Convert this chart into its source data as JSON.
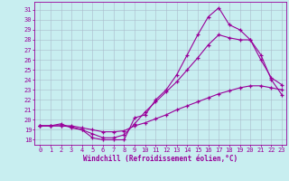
{
  "bg_color": "#c8eef0",
  "line_color": "#990099",
  "grid_color": "#aabbcc",
  "xlabel": "Windchill (Refroidissement éolien,°C)",
  "ylim": [
    17.5,
    31.8
  ],
  "xlim": [
    -0.5,
    23.4
  ],
  "yticks": [
    18,
    19,
    20,
    21,
    22,
    23,
    24,
    25,
    26,
    27,
    28,
    29,
    30,
    31
  ],
  "xticks": [
    0,
    1,
    2,
    3,
    4,
    5,
    6,
    7,
    8,
    9,
    10,
    11,
    12,
    13,
    14,
    15,
    16,
    17,
    18,
    19,
    20,
    21,
    22,
    23
  ],
  "line1_x": [
    0,
    1,
    2,
    3,
    4,
    5,
    6,
    7,
    8,
    9,
    10,
    11,
    12,
    13,
    14,
    15,
    16,
    17,
    18,
    19,
    20,
    21,
    22,
    23
  ],
  "line1_y": [
    19.4,
    19.4,
    19.6,
    19.2,
    19.0,
    18.2,
    18.0,
    18.0,
    18.0,
    20.2,
    20.5,
    22.0,
    23.0,
    24.5,
    26.5,
    28.5,
    30.3,
    31.2,
    29.5,
    29.0,
    28.0,
    26.0,
    24.2,
    23.5
  ],
  "line2_x": [
    0,
    1,
    2,
    3,
    4,
    5,
    6,
    7,
    8,
    9,
    10,
    11,
    12,
    13,
    14,
    15,
    16,
    17,
    18,
    19,
    20,
    21,
    22,
    23
  ],
  "line2_y": [
    19.4,
    19.4,
    19.4,
    19.3,
    19.0,
    18.6,
    18.2,
    18.2,
    18.5,
    19.6,
    20.8,
    21.8,
    22.8,
    23.8,
    25.0,
    26.2,
    27.5,
    28.5,
    28.2,
    28.0,
    28.0,
    26.5,
    24.0,
    22.5
  ],
  "line3_x": [
    0,
    1,
    2,
    3,
    4,
    5,
    6,
    7,
    8,
    9,
    10,
    11,
    12,
    13,
    14,
    15,
    16,
    17,
    18,
    19,
    20,
    21,
    22,
    23
  ],
  "line3_y": [
    19.4,
    19.4,
    19.4,
    19.4,
    19.2,
    19.0,
    18.8,
    18.8,
    18.9,
    19.4,
    19.7,
    20.1,
    20.5,
    21.0,
    21.4,
    21.8,
    22.2,
    22.6,
    22.9,
    23.2,
    23.4,
    23.4,
    23.2,
    23.0
  ]
}
